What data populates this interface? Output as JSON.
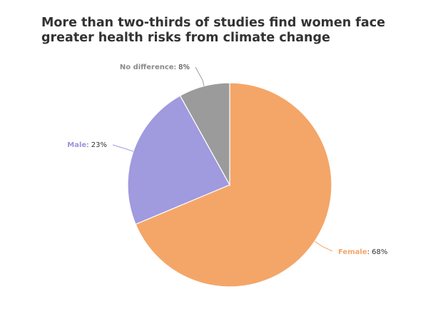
{
  "title": "More than two-thirds of studies find women face greater health risks from climate change",
  "chart_data": {
    "type": "pie",
    "slices": [
      {
        "label": "Female",
        "value": 68,
        "display": "68%",
        "color": "#f4a668",
        "label_color": "#f4a668"
      },
      {
        "label": "Male",
        "value": 23,
        "display": "23%",
        "color": "#a09ade",
        "label_color": "#9b93db"
      },
      {
        "label": "No difference",
        "value": 8,
        "display": "8%",
        "color": "#9b9b9b",
        "label_color": "#8a8a8a"
      }
    ]
  }
}
